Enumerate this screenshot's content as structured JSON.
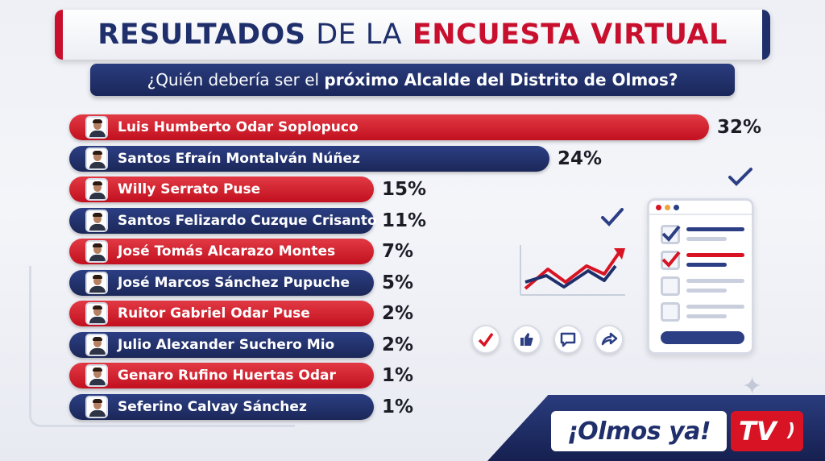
{
  "header": {
    "title_part1": "RESULTADOS",
    "title_part2": "DE LA",
    "title_part3": "ENCUESTA VIRTUAL",
    "subtitle_part1": "¿Quién debería ser el ",
    "subtitle_part2": "próximo Alcalde del Distrito de Olmos?"
  },
  "chart_data": {
    "type": "bar",
    "orientation": "horizontal",
    "title": "RESULTADOS DE LA ENCUESTA VIRTUAL",
    "subtitle": "¿Quién debería ser el próximo Alcalde del Distrito de Olmos?",
    "categories": [
      "Luis Humberto Odar Soplopuco",
      "Santos Efraín Montalván Núñez",
      "Willy Serrato Puse",
      "Santos Felizardo Cuzque Crisanto",
      "José Tomás Alcarazo Montes",
      "José Marcos Sánchez Pupuche",
      "Ruitor Gabriel Odar Puse",
      "Julio Alexander Suchero Mio",
      "Genaro Rufino Huertas Odar",
      "Seferino Calvay Sánchez"
    ],
    "values": [
      32,
      24,
      15,
      11,
      7,
      5,
      2,
      2,
      1,
      1
    ],
    "value_labels": [
      "32%",
      "24%",
      "15%",
      "11%",
      "7%",
      "5%",
      "2%",
      "2%",
      "1%",
      "1%"
    ],
    "bar_colors": [
      "#c8102e",
      "#1f2f6b",
      "#c8102e",
      "#1f2f6b",
      "#c8102e",
      "#1f2f6b",
      "#c8102e",
      "#1f2f6b",
      "#c8102e",
      "#1f2f6b"
    ],
    "unit": "%"
  },
  "brand": {
    "logo_text": "¡Olmos ya!",
    "logo_tv": "TV"
  },
  "colors": {
    "red": "#c8102e",
    "navy": "#1f2f6b",
    "background": "#eef0f6"
  },
  "icons": [
    "check-icon",
    "like-icon",
    "comment-icon",
    "share-icon",
    "trend-chart-icon",
    "checklist-card-icon"
  ]
}
